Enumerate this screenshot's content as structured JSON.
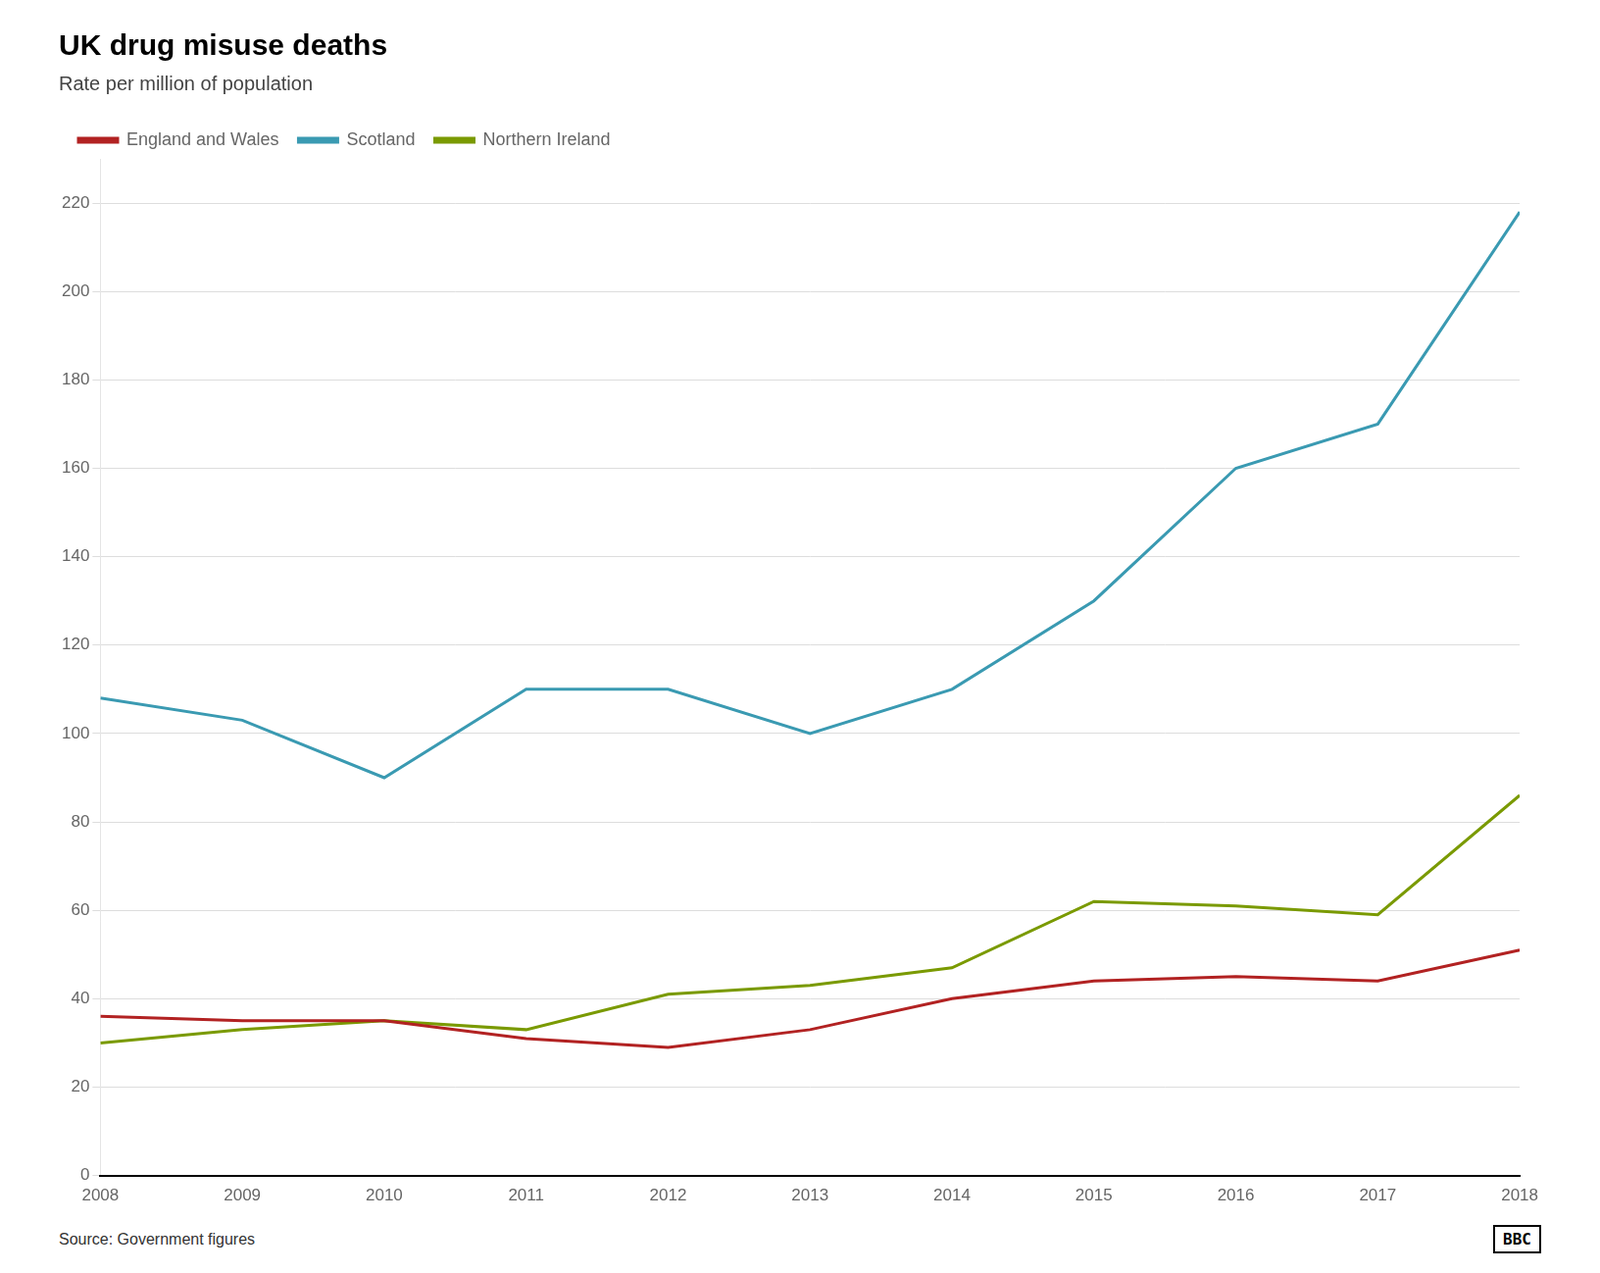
{
  "chart_data": {
    "type": "line",
    "title": "UK drug misuse deaths",
    "subtitle": "Rate per million of population",
    "source": "Source: Government figures",
    "annotations": [
      "BBC"
    ],
    "x": [
      2008,
      2009,
      2010,
      2011,
      2012,
      2013,
      2014,
      2015,
      2016,
      2017,
      2018
    ],
    "series": [
      {
        "name": "England and Wales",
        "color": "#b22222",
        "values": [
          36,
          35,
          35,
          31,
          29,
          33,
          40,
          44,
          45,
          44,
          51
        ]
      },
      {
        "name": "Scotland",
        "color": "#3a9ab2",
        "values": [
          108,
          103,
          90,
          110,
          110,
          100,
          110,
          130,
          160,
          170,
          218
        ]
      },
      {
        "name": "Northern Ireland",
        "color": "#7a9a01",
        "values": [
          30,
          33,
          35,
          33,
          41,
          43,
          47,
          62,
          61,
          59,
          86
        ]
      }
    ],
    "xlim": [
      2008,
      2018
    ],
    "xticks": [
      2008,
      2009,
      2010,
      2011,
      2012,
      2013,
      2014,
      2015,
      2016,
      2017,
      2018
    ],
    "ylim": [
      0,
      230
    ],
    "yticks": [
      0,
      20,
      40,
      60,
      80,
      100,
      120,
      140,
      160,
      180,
      200,
      220
    ],
    "grid": true,
    "legend": "top"
  }
}
